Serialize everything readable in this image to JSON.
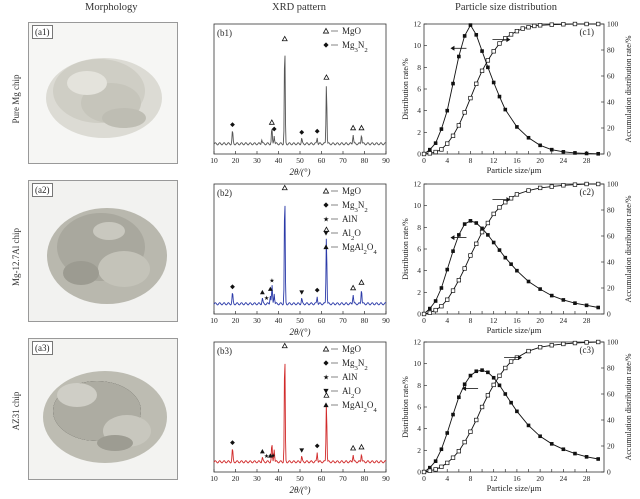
{
  "headers": {
    "morphology": "Morphology",
    "xrd": "XRD pattern",
    "psd": "Particle size distribution"
  },
  "rows": [
    {
      "row_label": "Pure Mg chip",
      "photo_label": "(a1)",
      "xrd_label": "(b1)",
      "psd_label": "(c1)",
      "legend": [
        "MgO",
        "Mg3N2"
      ],
      "xrd_color": "#555555"
    },
    {
      "row_label": "Mg-12.7Al chip",
      "photo_label": "(a2)",
      "xrd_label": "(b2)",
      "psd_label": "(c2)",
      "legend": [
        "MgO",
        "Mg3N2",
        "AlN",
        "Al2O",
        "MgAl2O4"
      ],
      "xrd_color": "#2b3aa8"
    },
    {
      "row_label": "AZ31 chip",
      "photo_label": "(a3)",
      "xrd_label": "(b3)",
      "psd_label": "(c3)",
      "legend": [
        "MgO",
        "Mg3N2",
        "AlN",
        "Al2O",
        "MgAl2O4"
      ],
      "xrd_color": "#d12a2a"
    }
  ],
  "xrd_axis": {
    "xlabel": "2θ/(°)",
    "ticks": [
      10,
      20,
      30,
      40,
      50,
      60,
      70,
      80,
      90
    ]
  },
  "psd_axis": {
    "xlabel": "Particle size/μm",
    "ylabel_left": "Distribution rate/%",
    "ylabel_right": "Accumulation distribution rate/%",
    "xticks": [
      0,
      2,
      4,
      6,
      8,
      10,
      12,
      14,
      16,
      18,
      20,
      22,
      24,
      26,
      28
    ],
    "xtick_labels": [
      "0",
      "4",
      "8",
      "12",
      "16",
      "20",
      "24",
      "28"
    ],
    "yleft_ticks": [
      0,
      2,
      4,
      6,
      8,
      10,
      12
    ],
    "yright_ticks": [
      0,
      20,
      40,
      60,
      80,
      100
    ]
  },
  "chart_data": [
    {
      "type": "line",
      "panel": "(c1)",
      "xlim": [
        0,
        31
      ],
      "ylim_left": [
        0,
        12
      ],
      "ylim_right": [
        0,
        100
      ],
      "series": [
        {
          "axis": "left",
          "marker": "filled",
          "x": [
            0,
            1,
            2,
            3,
            4,
            5,
            6,
            7,
            8,
            9,
            10,
            11,
            12,
            13,
            14,
            16,
            18,
            20,
            22,
            24,
            26,
            28,
            30
          ],
          "y": [
            0,
            0.4,
            1.0,
            2.3,
            4.0,
            6.5,
            9.0,
            10.9,
            11.9,
            11.0,
            9.5,
            8.0,
            6.6,
            5.3,
            4.1,
            2.5,
            1.5,
            0.8,
            0.4,
            0.2,
            0.1,
            0.05,
            0.02
          ]
        },
        {
          "axis": "right",
          "marker": "open",
          "x": [
            0,
            1,
            2,
            3,
            4,
            5,
            6,
            7,
            8,
            9,
            10,
            11,
            12,
            13,
            14,
            15,
            16,
            17,
            18,
            19,
            20,
            22,
            24,
            26,
            28,
            30
          ],
          "y": [
            0,
            0.5,
            1.5,
            3.5,
            8,
            14,
            22,
            32,
            43,
            54,
            64,
            72,
            79,
            85,
            89,
            92,
            94.5,
            96.5,
            97.5,
            98.5,
            99,
            99.5,
            99.8,
            100,
            100,
            100
          ]
        }
      ]
    },
    {
      "type": "line",
      "panel": "(c2)",
      "xlim": [
        0,
        31
      ],
      "ylim_left": [
        0,
        12
      ],
      "ylim_right": [
        0,
        100
      ],
      "series": [
        {
          "axis": "left",
          "marker": "filled",
          "x": [
            0,
            1,
            2,
            3,
            4,
            5,
            6,
            7,
            8,
            9,
            10,
            11,
            12,
            13,
            14,
            15,
            16,
            18,
            20,
            22,
            24,
            26,
            28,
            30
          ],
          "y": [
            0,
            0.5,
            1.2,
            2.4,
            4.1,
            5.8,
            7.3,
            8.3,
            8.6,
            8.4,
            7.9,
            7.3,
            6.6,
            5.9,
            5.2,
            4.6,
            4.0,
            3.0,
            2.3,
            1.7,
            1.3,
            1.0,
            0.8,
            0.6
          ]
        },
        {
          "axis": "right",
          "marker": "open",
          "x": [
            0,
            1,
            2,
            3,
            4,
            5,
            6,
            7,
            8,
            9,
            10,
            11,
            12,
            13,
            14,
            15,
            16,
            18,
            20,
            22,
            24,
            26,
            28,
            30
          ],
          "y": [
            0,
            1,
            3,
            6,
            11,
            18,
            26,
            35,
            45,
            54,
            63,
            70,
            77,
            82,
            86,
            89,
            92,
            95,
            97,
            98,
            99,
            99.5,
            100,
            100
          ]
        }
      ]
    },
    {
      "type": "line",
      "panel": "(c3)",
      "xlim": [
        0,
        31
      ],
      "ylim_left": [
        0,
        12
      ],
      "ylim_right": [
        0,
        100
      ],
      "series": [
        {
          "axis": "left",
          "marker": "filled",
          "x": [
            0,
            1,
            2,
            3,
            4,
            5,
            6,
            7,
            8,
            9,
            10,
            11,
            12,
            13,
            14,
            15,
            16,
            18,
            20,
            22,
            24,
            26,
            28,
            30
          ],
          "y": [
            0,
            0.4,
            1.0,
            2.1,
            3.6,
            5.3,
            6.9,
            8.1,
            8.9,
            9.3,
            9.4,
            9.2,
            8.7,
            8.0,
            7.2,
            6.4,
            5.6,
            4.3,
            3.3,
            2.6,
            2.1,
            1.7,
            1.4,
            1.2
          ]
        },
        {
          "axis": "right",
          "marker": "open",
          "x": [
            0,
            1,
            2,
            3,
            4,
            5,
            6,
            7,
            8,
            9,
            10,
            11,
            12,
            13,
            14,
            15,
            16,
            18,
            20,
            22,
            24,
            26,
            28,
            30
          ],
          "y": [
            0,
            1,
            2,
            4,
            7,
            11,
            16,
            23,
            31,
            40,
            50,
            59,
            67,
            74,
            80,
            85,
            88,
            93,
            96,
            97.5,
            98.5,
            99.2,
            99.7,
            100
          ]
        }
      ]
    }
  ],
  "xrd_data": [
    {
      "panel": "(b1)",
      "peaks": [
        [
          18.6,
          0.12
        ],
        [
          32.2,
          0.04
        ],
        [
          36.9,
          0.14
        ],
        [
          38.0,
          0.08
        ],
        [
          42.9,
          0.9
        ],
        [
          50.8,
          0.05
        ],
        [
          58.0,
          0.06
        ],
        [
          62.3,
          0.55
        ],
        [
          74.7,
          0.09
        ],
        [
          78.6,
          0.09
        ]
      ],
      "markers": [
        [
          "diamond",
          18.6
        ],
        [
          "tri_open",
          36.9
        ],
        [
          "diamond",
          38.0
        ],
        [
          "tri_open",
          42.9
        ],
        [
          "diamond",
          50.8
        ],
        [
          "diamond",
          58.0
        ],
        [
          "tri_open",
          62.3
        ],
        [
          "tri_open",
          74.7
        ],
        [
          "tri_open",
          78.6
        ]
      ]
    },
    {
      "panel": "(b2)",
      "peaks": [
        [
          18.6,
          0.1
        ],
        [
          32.5,
          0.05
        ],
        [
          36.2,
          0.08
        ],
        [
          37.0,
          0.16
        ],
        [
          38.0,
          0.1
        ],
        [
          42.9,
          1.0
        ],
        [
          50.8,
          0.05
        ],
        [
          58.0,
          0.07
        ],
        [
          62.3,
          0.62
        ],
        [
          74.7,
          0.09
        ],
        [
          78.6,
          0.14
        ]
      ],
      "markers": [
        [
          "diamond",
          18.6
        ],
        [
          "tri_fill",
          32.5
        ],
        [
          "star",
          34.5
        ],
        [
          "tri_fill",
          36.2
        ],
        [
          "star",
          37.0
        ],
        [
          "tri_open",
          42.9
        ],
        [
          "tri_down",
          50.8
        ],
        [
          "diamond",
          58.0
        ],
        [
          "tri_open",
          62.3
        ],
        [
          "tri_open",
          74.7
        ],
        [
          "tri_open",
          78.6
        ]
      ]
    },
    {
      "panel": "(b3)",
      "peaks": [
        [
          18.6,
          0.12
        ],
        [
          32.5,
          0.04
        ],
        [
          36.9,
          0.16
        ],
        [
          38.0,
          0.12
        ],
        [
          42.9,
          1.0
        ],
        [
          50.8,
          0.05
        ],
        [
          58.0,
          0.09
        ],
        [
          62.3,
          0.55
        ],
        [
          74.7,
          0.07
        ],
        [
          78.6,
          0.08
        ]
      ],
      "markers": [
        [
          "diamond",
          18.6
        ],
        [
          "tri_fill",
          32.5
        ],
        [
          "star",
          34.5
        ],
        [
          "tri_fill",
          36.2
        ],
        [
          "star",
          37.5
        ],
        [
          "tri_open",
          42.9
        ],
        [
          "tri_down",
          50.8
        ],
        [
          "diamond",
          58.0
        ],
        [
          "tri_open",
          62.3
        ],
        [
          "tri_open",
          74.7
        ],
        [
          "tri_open",
          78.6
        ]
      ]
    }
  ]
}
